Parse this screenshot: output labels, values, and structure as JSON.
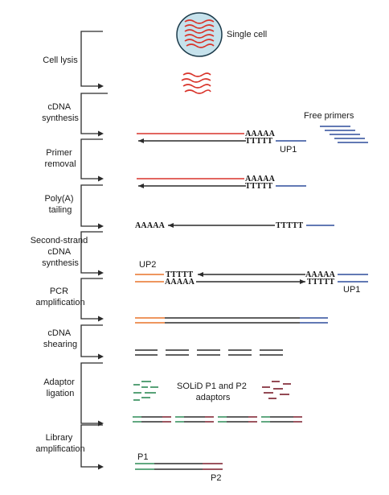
{
  "colors": {
    "red": "#d9342b",
    "black": "#2b2b2b",
    "blue": "#2f4d9b",
    "orange": "#e8742a",
    "green": "#2e8b57",
    "maroon": "#7a1c2a",
    "cell_fill": "#c6e2ec",
    "cell_stroke": "#1b3a4a"
  },
  "steps": [
    {
      "lines": [
        "Cell lysis"
      ]
    },
    {
      "lines": [
        "cDNA",
        "synthesis"
      ]
    },
    {
      "lines": [
        "Primer",
        "removal"
      ]
    },
    {
      "lines": [
        "Poly(A)",
        "tailing"
      ]
    },
    {
      "lines": [
        "Second-strand",
        "cDNA",
        "synthesis"
      ]
    },
    {
      "lines": [
        "PCR",
        "amplification"
      ]
    },
    {
      "lines": [
        "cDNA",
        "shearing"
      ]
    },
    {
      "lines": [
        "Adaptor",
        "ligation"
      ]
    },
    {
      "lines": [
        "Library",
        "amplification"
      ]
    }
  ],
  "labels": {
    "single_cell": "Single cell",
    "free_primers": "Free primers",
    "up1_a": "UP1",
    "up2": "UP2",
    "up1_b": "UP1",
    "solid_line1": "SOLiD P1 and P2",
    "solid_line2": "adaptors",
    "p1": "P1",
    "p2": "P2"
  },
  "sequences": {
    "polyA": "AAAAA",
    "polyT": "TTTTT"
  }
}
